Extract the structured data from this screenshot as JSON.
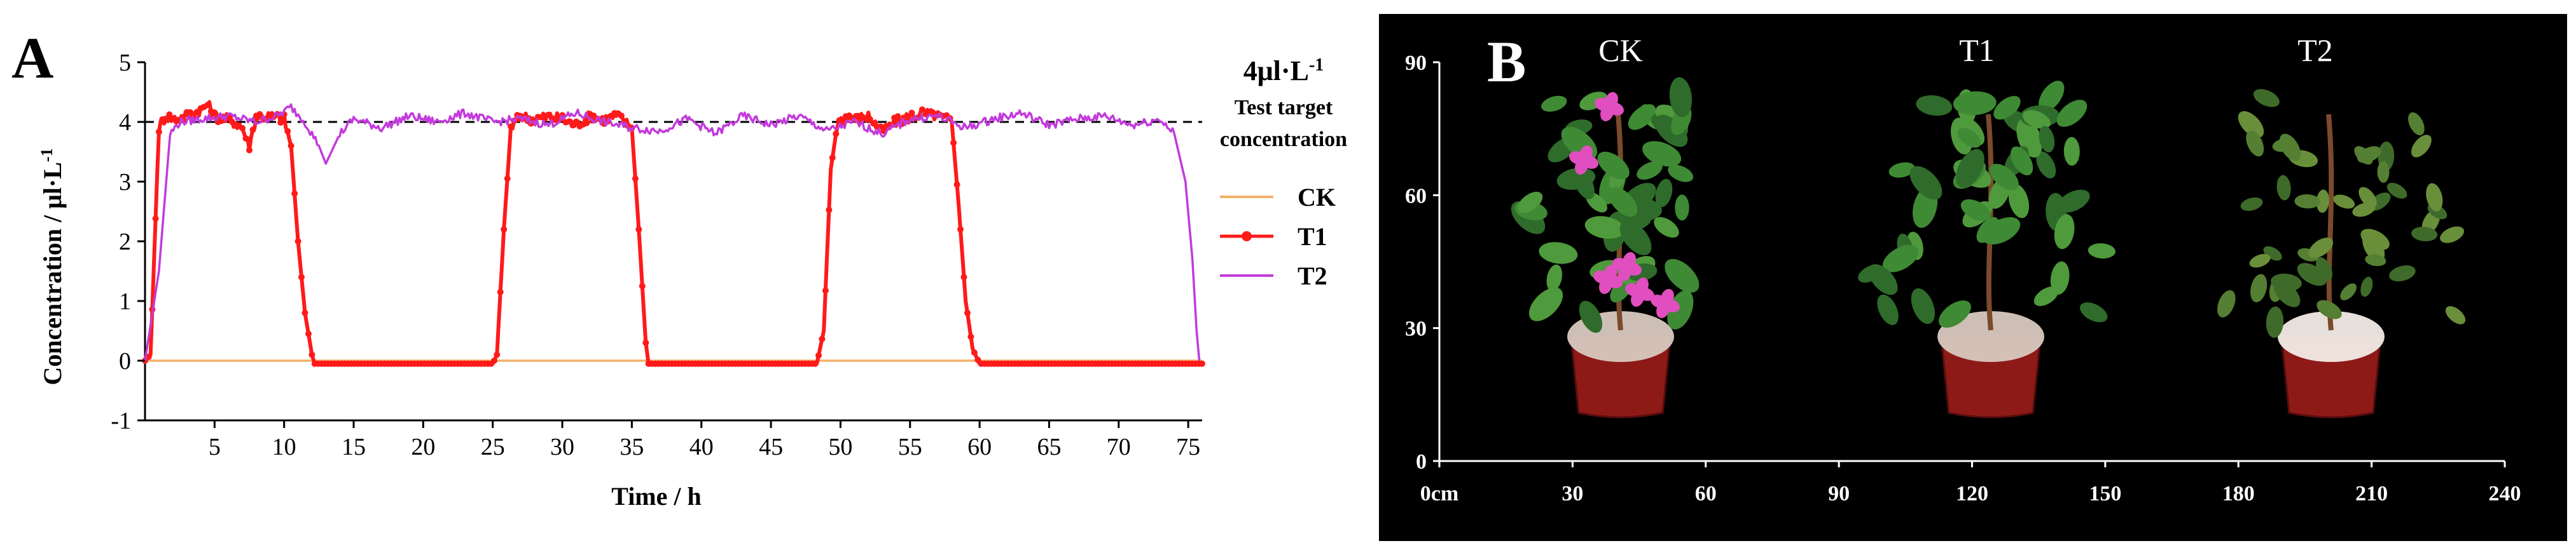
{
  "panel_a": {
    "label": "A",
    "annotation": {
      "value_text": "4μl·L",
      "value_sup": "-1",
      "line1": "Test target",
      "line2": "concentration"
    },
    "colors": {
      "CK": "#f4b06a",
      "T1": "#ff1a1a",
      "T2": "#c23bdc",
      "target": "#000000"
    }
  },
  "panel_b": {
    "label": "B",
    "background": "#000000",
    "treatment_labels": [
      "CK",
      "T1",
      "T2"
    ],
    "x_unit_label": "0cm",
    "plants": [
      {
        "name": "CK",
        "flowers": true,
        "pot_color": "#8e1a18"
      },
      {
        "name": "T1",
        "flowers": false,
        "pot_color": "#8e1a18"
      },
      {
        "name": "T2",
        "flowers": false,
        "pot_color": "#8e1a18"
      }
    ]
  },
  "chart_data": [
    {
      "type": "line",
      "title": "",
      "xlabel": "Time / h",
      "ylabel": "Concentration / μl·L",
      "ylabel_sup": "-1",
      "xlim": [
        0,
        76
      ],
      "ylim": [
        -1,
        5
      ],
      "x_ticks": [
        5,
        10,
        15,
        20,
        25,
        30,
        35,
        40,
        45,
        50,
        55,
        60,
        65,
        70,
        75
      ],
      "y_ticks": [
        -1,
        0,
        1,
        2,
        3,
        4,
        5
      ],
      "legend": "right",
      "target_line": 4,
      "series": [
        {
          "name": "CK",
          "x": [
            0,
            76
          ],
          "y": [
            0,
            0
          ]
        },
        {
          "name": "T1",
          "x": [
            0,
            0.4,
            1,
            1.5,
            2,
            3,
            4,
            4.5,
            5,
            6,
            7,
            7.5,
            8,
            9,
            10,
            10.5,
            11,
            11.5,
            12,
            12.2,
            25,
            25.3,
            25.8,
            26.3,
            27,
            28,
            29,
            30,
            31,
            32,
            33,
            34,
            35,
            35.5,
            36,
            36.2,
            48.3,
            48.8,
            49.3,
            49.8,
            50.5,
            51,
            52,
            53,
            54,
            55,
            56,
            57,
            58,
            58.5,
            59,
            59.5,
            60,
            76
          ],
          "y": [
            0,
            0.1,
            3.9,
            4.1,
            4.05,
            4.1,
            4.2,
            4.3,
            4.1,
            4.05,
            3.9,
            3.6,
            4.1,
            4.1,
            4.05,
            3.6,
            2.0,
            0.8,
            0.1,
            -0.05,
            -0.05,
            0.1,
            2.2,
            3.9,
            4.1,
            4.05,
            4.1,
            4.05,
            3.95,
            4.1,
            4.05,
            4.1,
            3.9,
            2.2,
            0.3,
            -0.05,
            -0.05,
            0.5,
            3.2,
            4.0,
            4.1,
            4.05,
            4.1,
            3.85,
            4.0,
            4.1,
            4.15,
            4.1,
            4.0,
            2.6,
            1.0,
            0.2,
            -0.05,
            -0.05
          ]
        },
        {
          "name": "T2",
          "x": [
            0,
            1,
            1.8,
            2.5,
            4,
            6,
            8,
            9.5,
            10.5,
            11.5,
            12.5,
            13,
            14,
            15,
            17,
            19,
            21,
            23,
            25,
            27,
            29,
            31,
            33,
            35,
            37,
            39,
            41,
            43,
            45,
            47,
            49,
            51,
            53,
            55,
            57,
            59,
            61,
            63,
            65,
            67,
            69,
            71,
            73,
            74,
            74.8,
            75.3,
            75.6,
            75.8
          ],
          "y": [
            0,
            1.5,
            3.8,
            4.0,
            4.05,
            4.1,
            4.0,
            4.1,
            4.25,
            4.0,
            3.6,
            3.3,
            3.8,
            4.05,
            3.9,
            4.1,
            4.0,
            4.15,
            4.0,
            4.05,
            3.95,
            4.15,
            4.0,
            3.9,
            3.85,
            4.05,
            3.8,
            4.1,
            3.95,
            4.1,
            3.85,
            4.0,
            3.8,
            4.05,
            4.1,
            3.9,
            4.05,
            4.15,
            3.95,
            4.05,
            4.1,
            3.95,
            4.05,
            3.8,
            3.0,
            1.7,
            0.5,
            0.0
          ]
        }
      ]
    },
    {
      "type": "scale",
      "xlim": [
        0,
        240
      ],
      "ylim": [
        0,
        90
      ],
      "x_ticks": [
        0,
        30,
        60,
        90,
        120,
        150,
        180,
        210,
        240
      ],
      "y_ticks": [
        0,
        30,
        60,
        90
      ]
    }
  ]
}
